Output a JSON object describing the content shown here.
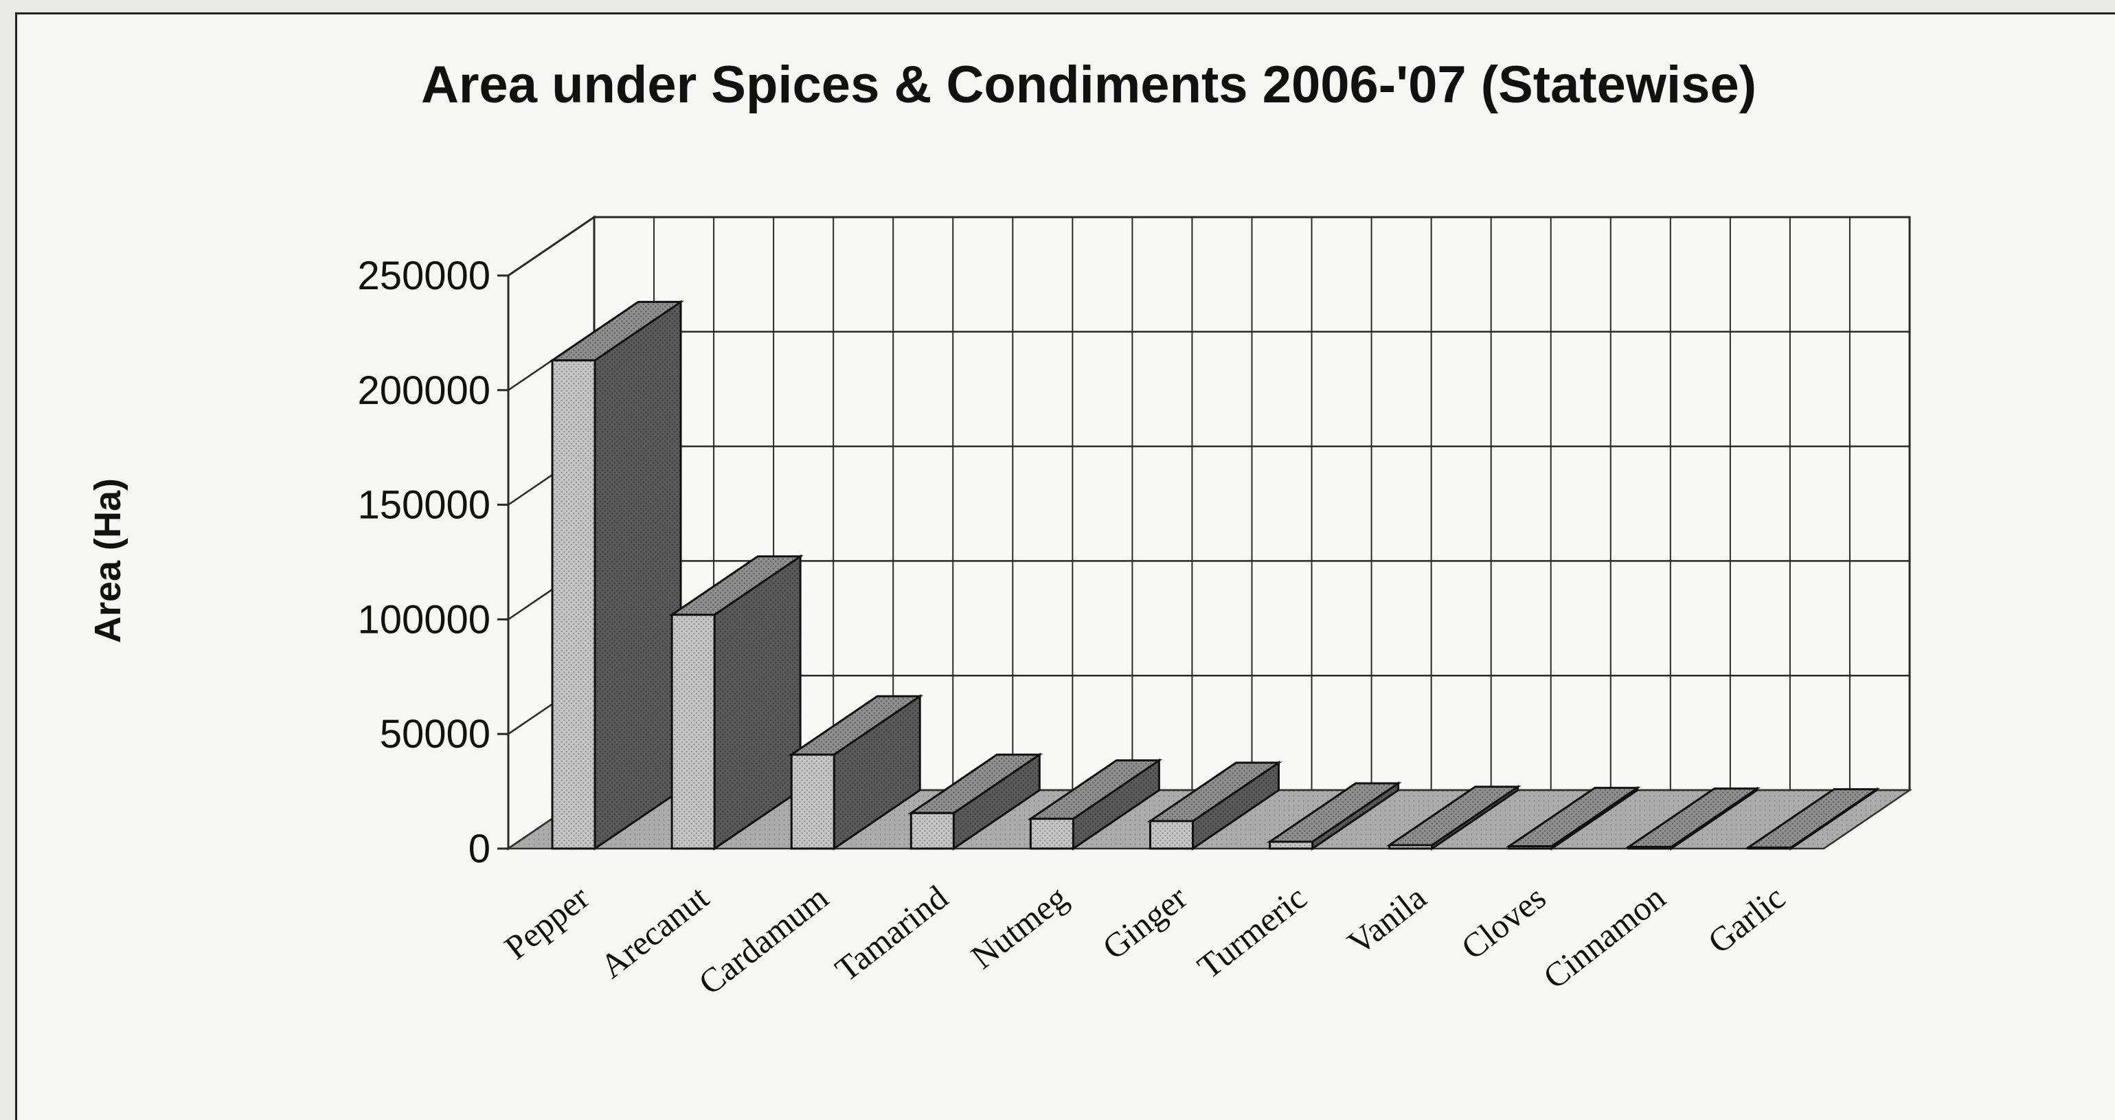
{
  "chart_data": {
    "type": "bar",
    "title": "Area under Spices & Condiments 2006-'07 (Statewise)",
    "xlabel": "",
    "ylabel": "Area (Ha)",
    "categories": [
      "Pepper",
      "Arecanut",
      "Cardamum",
      "Tamarind",
      "Nutmeg",
      "Ginger",
      "Turmeric",
      "Vanila",
      "Cloves",
      "Cinnamon",
      "Garlic"
    ],
    "values": [
      213000,
      102000,
      41000,
      15500,
      13000,
      12000,
      3000,
      1500,
      1000,
      700,
      400
    ],
    "ylim": [
      0,
      250000
    ],
    "yticks": [
      "0",
      "50000",
      "100000",
      "150000",
      "200000",
      "250000"
    ],
    "grid": true,
    "style": "3d-bar",
    "colors": {
      "bar_front": "#c2c2c2",
      "bar_side": "#595959",
      "bar_top": "#8a8a8a",
      "floor": "#a9a9a9",
      "wall": "#f6f6f4",
      "grid": "#2a2a2a"
    }
  }
}
